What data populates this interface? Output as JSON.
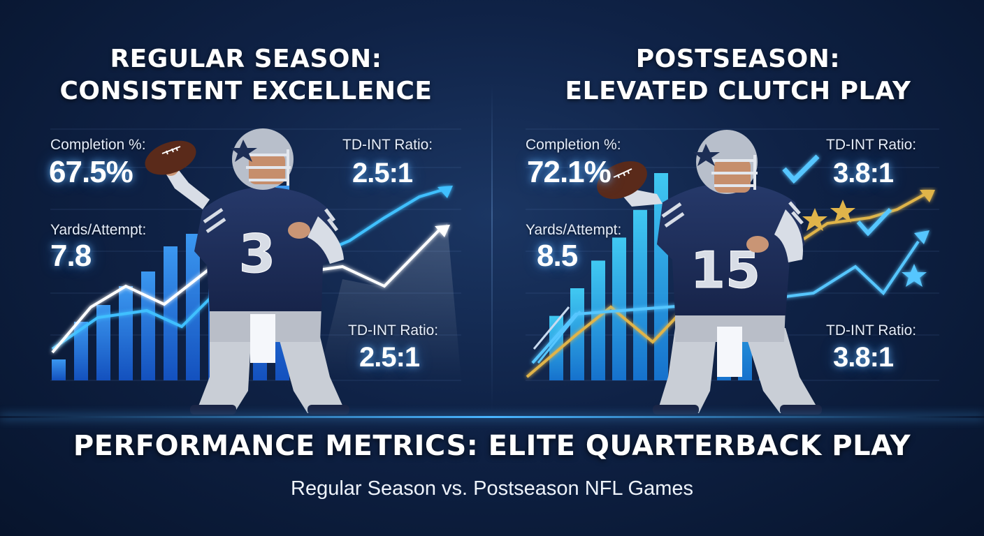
{
  "regular_season": {
    "title_line1": "REGULAR SEASON:",
    "title_line2": "CONSISTENT EXCELLENCE",
    "completion_label": "Completion %:",
    "completion_value": "67.5%",
    "yards_label": "Yards/Attempt:",
    "yards_value": "7.8",
    "td_int_label": "TD-INT Ratio:",
    "td_int_value": "2.5:1",
    "td_int_label_2": "TD-INT Ratio:",
    "td_int_value_2": "2.5:1",
    "jersey_number": "3",
    "bar_levels": [
      0.1,
      0.28,
      0.36,
      0.45,
      0.52,
      0.64,
      0.7,
      0.8,
      0.86,
      0.74,
      0.93,
      0.84
    ]
  },
  "postseason": {
    "title_line1": "POSTSEASON:",
    "title_line2": "ELEVATED CLUTCH PLAY",
    "completion_label": "Completion %:",
    "completion_value": "72.1%",
    "yards_label": "Yards/Attempt:",
    "yards_value": "8.5",
    "td_int_label": "TD-INT Ratio:",
    "td_int_value": "3.8:1",
    "td_int_label_2": "TD-INT Ratio:",
    "td_int_value_2": "3.8:1",
    "jersey_number": "15",
    "bar_levels": [
      0.28,
      0.4,
      0.52,
      0.62,
      0.74,
      0.9,
      0.55,
      0.62,
      0.44,
      0.58,
      0.5
    ]
  },
  "footer": {
    "title": "PERFORMANCE METRICS: ELITE QUARTERBACK PLAY",
    "subtitle": "Regular Season vs. Postseason NFL Games"
  },
  "colors": {
    "background": "#0f2246",
    "bar_blue": "#2f8bff",
    "bar_cyan": "#3fd0ff",
    "jersey_navy": "#1d2e55",
    "gold": "#e0b44a",
    "glow": "#49b5ff"
  },
  "icons": [
    "football-icon",
    "helmet-icon",
    "checkmark-icon",
    "star-icon",
    "trend-arrow-icon"
  ]
}
